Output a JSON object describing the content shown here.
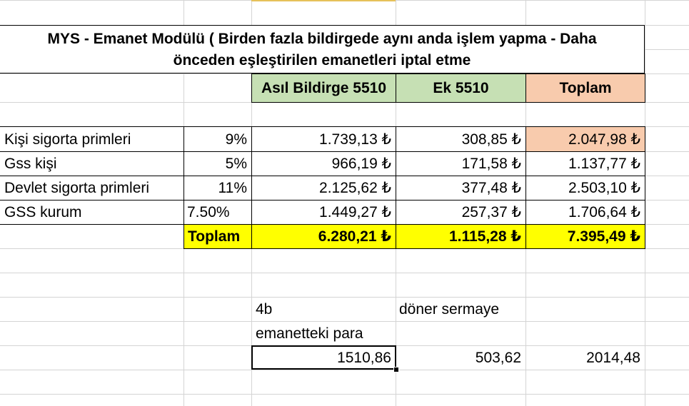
{
  "title": {
    "line1": "MYS - Emanet Modülü ( Birden fazla bildirgede aynı anda işlem yapma - Daha",
    "line2": "önceden eşleştirilen emanetleri iptal etme"
  },
  "headers": {
    "asil": "Asıl Bildirge 5510",
    "ek": "Ek 5510",
    "toplam": "Toplam"
  },
  "rows": [
    {
      "label": "Kişi sigorta primleri",
      "rate": "9%",
      "asil": "1.739,13 ₺",
      "ek": "308,85 ₺",
      "toplam": "2.047,98 ₺"
    },
    {
      "label": "Gss kişi",
      "rate": "5%",
      "asil": "966,19 ₺",
      "ek": "171,58 ₺",
      "toplam": "1.137,77 ₺"
    },
    {
      "label": "Devlet sigorta primleri",
      "rate": "11%",
      "asil": "2.125,62 ₺",
      "ek": "377,48 ₺",
      "toplam": "2.503,10 ₺"
    },
    {
      "label": "GSS kurum",
      "rate": "7.50%",
      "asil": "1.449,27 ₺",
      "ek": "257,37 ₺",
      "toplam": "1.706,64 ₺"
    }
  ],
  "totals": {
    "label": "Toplam",
    "asil": "6.280,21 ₺",
    "ek": "1.115,28 ₺",
    "toplam": "7.395,49 ₺"
  },
  "lower": {
    "label_4b": "4b",
    "label_doner": "döner sermaye",
    "label_emanet": "emanetteki para",
    "val_emanet": "1510,86",
    "val_doner": "503,62",
    "val_total": "2014,48"
  },
  "colors": {
    "header_green": "#c6e0b4",
    "header_peach": "#f8cbad",
    "total_yellow": "#ffff00",
    "gridline": "#d4d4d4"
  }
}
